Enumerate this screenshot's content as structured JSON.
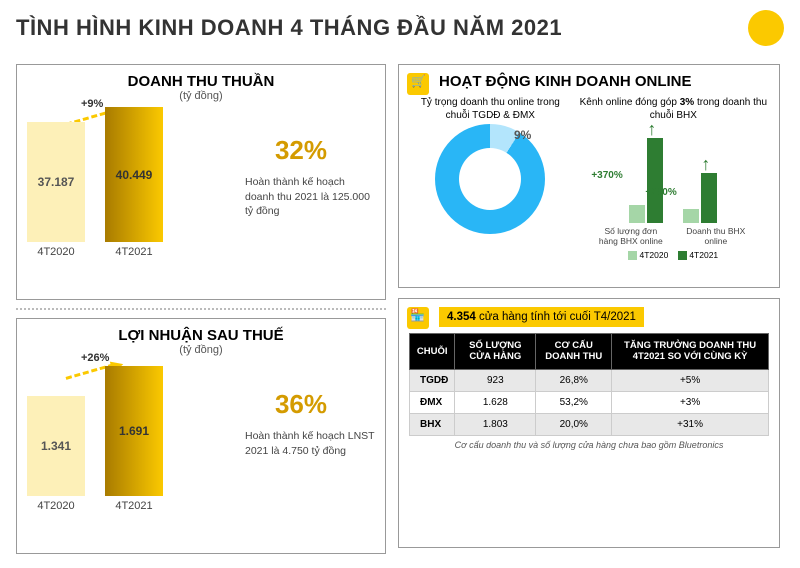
{
  "header": {
    "title": "TÌNH HÌNH KINH DOANH 4 THÁNG ĐẦU NĂM 2021",
    "title_color": "#333333"
  },
  "colors": {
    "yellow": "#fbc900",
    "yellow_light": "#fdf0b8",
    "yellow_grad_dark": "#a87b00",
    "green_dark": "#2e7d32",
    "green_light": "#a5d6a7",
    "blue": "#29b6f6",
    "blue_light": "#b3e5fc",
    "black": "#000000"
  },
  "revenue": {
    "title": "DOANH THU THUẦN",
    "subtitle": "(tỷ đồng)",
    "growth": "+9%",
    "bars": [
      {
        "label": "4T2020",
        "value": "37.187",
        "height": 120,
        "fill": "#fdf0b8",
        "text_color": "#555"
      },
      {
        "label": "4T2021",
        "value": "40.449",
        "height": 135,
        "fill": "linear-gradient(90deg,#a87b00,#fbc900)",
        "text_color": "#333"
      }
    ],
    "pct": "32%",
    "pct_color": "#d49b00",
    "desc": "Hoàn thành kế hoạch doanh thu 2021 là 125.000 tỷ đồng"
  },
  "profit": {
    "title": "LỢI NHUẬN SAU THUẾ",
    "subtitle": "(tỷ đồng)",
    "growth": "+26%",
    "bars": [
      {
        "label": "4T2020",
        "value": "1.341",
        "height": 100,
        "fill": "#fdf0b8",
        "text_color": "#555"
      },
      {
        "label": "4T2021",
        "value": "1.691",
        "height": 130,
        "fill": "linear-gradient(90deg,#a87b00,#fbc900)",
        "text_color": "#333"
      }
    ],
    "pct": "36%",
    "pct_color": "#d49b00",
    "desc": "Hoàn thành kế hoạch LNST 2021 là 4.750 tỷ đồng"
  },
  "online": {
    "title": "HOẠT ĐỘNG KINH DOANH ONLINE",
    "donut": {
      "desc": "Tỷ trọng doanh thu online trong chuỗi TGDĐ & ĐMX",
      "value": "9%",
      "main_pct": 91,
      "main_color": "#29b6f6",
      "slice_color": "#b3e5fc"
    },
    "small": {
      "desc_pre": "Kênh online đóng góp ",
      "bold": "3%",
      "desc_post": " trong doanh thu chuỗi BHX",
      "groups": [
        {
          "label": "Số lượng đơn hàng BHX online",
          "pct": "+370%",
          "b1_h": 18,
          "b2_h": 85
        },
        {
          "label": "Doanh thu BHX online",
          "pct": "+260%",
          "b1_h": 14,
          "b2_h": 50
        }
      ],
      "legend": [
        {
          "label": "4T2020",
          "color": "#a5d6a7"
        },
        {
          "label": "4T2021",
          "color": "#2e7d32"
        }
      ]
    }
  },
  "stores": {
    "header_bold": "4.354",
    "header_rest": " cửa hàng tính tới cuối T4/2021",
    "columns": [
      "CHUỖI",
      "SỐ LƯỢNG CỬA HÀNG",
      "CƠ CẤU DOANH THU",
      "TĂNG TRƯỞNG DOANH THU 4T2021 SO VỚI CÙNG KỲ"
    ],
    "rows": [
      [
        "TGDĐ",
        "923",
        "26,8%",
        "+5%"
      ],
      [
        "ĐMX",
        "1.628",
        "53,2%",
        "+3%"
      ],
      [
        "BHX",
        "1.803",
        "20,0%",
        "+31%"
      ]
    ],
    "note": "Cơ cấu doanh thu và số lượng cửa hàng chưa bao gồm Bluetronics"
  }
}
